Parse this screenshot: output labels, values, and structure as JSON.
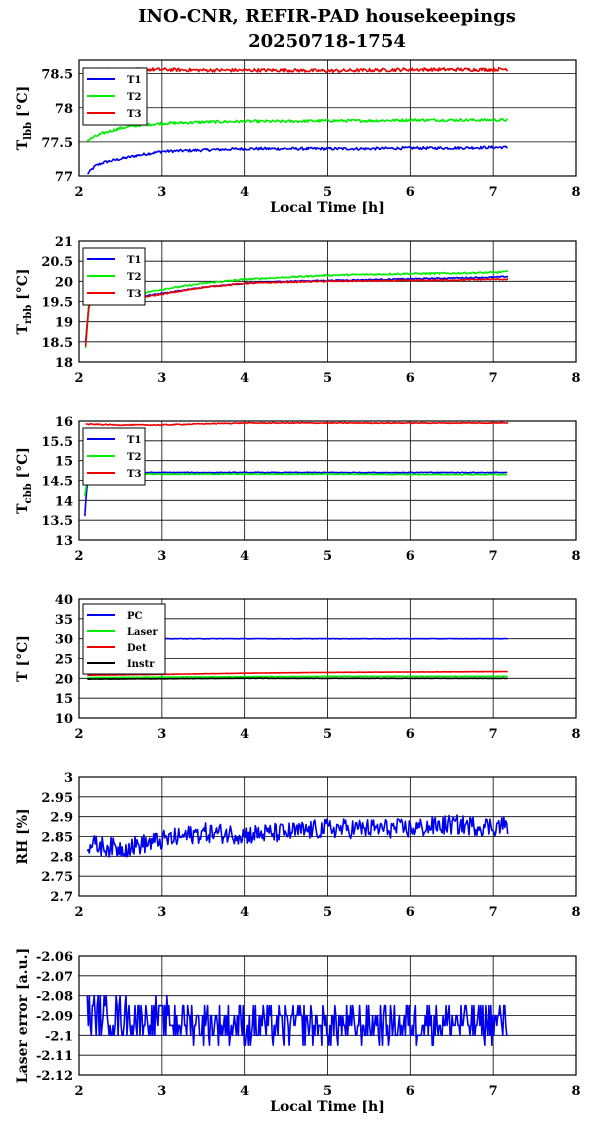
{
  "figure": {
    "title_line1": "INO-CNR, REFIR-PAD housekeepings",
    "title_line2": "20250718-1754"
  },
  "chart_data": [
    {
      "id": "p1",
      "type": "line",
      "ylabel": "T",
      "ylabel_sub": "lbb",
      "ylabel_unit": " [°C]",
      "xlabel": "Local Time [h]",
      "xlim": [
        2,
        8
      ],
      "ylim": [
        77,
        78.7
      ],
      "xticks": [
        2,
        3,
        4,
        5,
        6,
        7,
        8
      ],
      "yticks": [
        77,
        77.5,
        78,
        78.5
      ],
      "ytick_labels": [
        "77",
        "77.5",
        "78",
        "78.5"
      ],
      "grid": true,
      "legend_position": "top-left",
      "series": [
        {
          "name": "T1",
          "color": "#0000ee",
          "x": [
            2.1,
            2.2,
            2.3,
            2.5,
            2.7,
            3,
            3.5,
            4,
            4.5,
            5,
            5.5,
            6,
            6.5,
            7,
            7.18
          ],
          "y": [
            77.03,
            77.15,
            77.2,
            77.25,
            77.3,
            77.36,
            77.38,
            77.4,
            77.4,
            77.4,
            77.4,
            77.41,
            77.41,
            77.42,
            77.42
          ],
          "noise": 0.02
        },
        {
          "name": "T2",
          "color": "#00ee00",
          "x": [
            2.1,
            2.2,
            2.3,
            2.5,
            2.7,
            3,
            3.5,
            4,
            4.5,
            5,
            5.5,
            6,
            6.5,
            7,
            7.18
          ],
          "y": [
            77.52,
            77.58,
            77.63,
            77.7,
            77.74,
            77.77,
            77.79,
            77.8,
            77.8,
            77.81,
            77.81,
            77.82,
            77.82,
            77.82,
            77.82
          ],
          "noise": 0.02
        },
        {
          "name": "T3",
          "color": "#ee0000",
          "x": [
            2.1,
            2.5,
            3,
            3.5,
            4,
            4.5,
            5,
            5.5,
            6,
            6.5,
            7,
            7.18
          ],
          "y": [
            78.56,
            78.56,
            78.56,
            78.55,
            78.55,
            78.55,
            78.54,
            78.55,
            78.56,
            78.56,
            78.56,
            78.57
          ],
          "noise": 0.025
        }
      ]
    },
    {
      "id": "p2",
      "type": "line",
      "ylabel": "T",
      "ylabel_sub": "rbb",
      "ylabel_unit": " [°C]",
      "xlim": [
        2,
        8
      ],
      "ylim": [
        18,
        21
      ],
      "xticks": [
        2,
        3,
        4,
        5,
        6,
        7,
        8
      ],
      "yticks": [
        18,
        18.5,
        19,
        19.5,
        20,
        20.5,
        21
      ],
      "ytick_labels": [
        "18",
        "18.5",
        "19",
        "19.5",
        "20",
        "20.5",
        "21"
      ],
      "grid": true,
      "legend_position": "top-left",
      "series": [
        {
          "name": "T1",
          "color": "#0000ee",
          "x": [
            2.08,
            2.1,
            2.12,
            2.2,
            2.5,
            3,
            3.5,
            4,
            4.5,
            5,
            5.5,
            6,
            6.5,
            7,
            7.18
          ],
          "y": [
            18.5,
            19,
            19.45,
            19.5,
            19.55,
            19.7,
            19.85,
            19.95,
            20.0,
            20.02,
            20.04,
            20.06,
            20.08,
            20.1,
            20.12
          ],
          "noise": 0.015
        },
        {
          "name": "T2",
          "color": "#00ee00",
          "x": [
            2.08,
            2.1,
            2.12,
            2.2,
            2.5,
            3,
            3.5,
            4,
            4.5,
            5,
            5.5,
            6,
            6.5,
            7,
            7.18
          ],
          "y": [
            18.35,
            19,
            19.45,
            19.55,
            19.6,
            19.8,
            19.95,
            20.05,
            20.1,
            20.15,
            20.17,
            20.19,
            20.2,
            20.22,
            20.24
          ],
          "noise": 0.02
        },
        {
          "name": "T3",
          "color": "#ee0000",
          "x": [
            2.08,
            2.1,
            2.12,
            2.2,
            2.5,
            3,
            3.5,
            4,
            4.5,
            5,
            5.5,
            6,
            6.5,
            7,
            7.18
          ],
          "y": [
            18.4,
            18.9,
            19.4,
            19.48,
            19.52,
            19.68,
            19.85,
            19.95,
            19.98,
            20.0,
            20.01,
            20.02,
            20.03,
            20.05,
            20.05
          ],
          "noise": 0.015
        }
      ]
    },
    {
      "id": "p3",
      "type": "line",
      "ylabel": "T",
      "ylabel_sub": "cbb",
      "ylabel_unit": " [°C]",
      "xlim": [
        2,
        8
      ],
      "ylim": [
        13,
        16
      ],
      "xticks": [
        2,
        3,
        4,
        5,
        6,
        7,
        8
      ],
      "yticks": [
        13,
        13.5,
        14,
        14.5,
        15,
        15.5,
        16
      ],
      "ytick_labels": [
        "13",
        "13.5",
        "14",
        "14.5",
        "15",
        "15.5",
        "16"
      ],
      "grid": true,
      "legend_position": "top-left",
      "series": [
        {
          "name": "T1",
          "color": "#0000ee",
          "x": [
            2.07,
            2.09,
            2.11,
            2.15,
            2.5,
            3,
            4,
            5,
            6,
            7,
            7.18
          ],
          "y": [
            13.6,
            14.2,
            14.55,
            14.68,
            14.7,
            14.7,
            14.7,
            14.7,
            14.7,
            14.7,
            14.7
          ],
          "noise": 0.01
        },
        {
          "name": "T2",
          "color": "#00ee00",
          "x": [
            2.07,
            2.09,
            2.11,
            2.15,
            2.5,
            3,
            4,
            5,
            6,
            7,
            7.18
          ],
          "y": [
            14.1,
            14.4,
            14.6,
            14.66,
            14.67,
            14.66,
            14.66,
            14.66,
            14.65,
            14.65,
            14.65
          ],
          "noise": 0.01
        },
        {
          "name": "T3",
          "color": "#ee0000",
          "x": [
            2.08,
            2.5,
            3,
            3.5,
            4,
            5,
            6,
            7,
            7.18
          ],
          "y": [
            15.92,
            15.9,
            15.9,
            15.93,
            15.95,
            15.95,
            15.95,
            15.95,
            15.96
          ],
          "noise": 0.012
        }
      ]
    },
    {
      "id": "p4",
      "type": "line",
      "ylabel": "T [°C]",
      "xlim": [
        2,
        8
      ],
      "ylim": [
        10,
        40
      ],
      "xticks": [
        2,
        3,
        4,
        5,
        6,
        7,
        8
      ],
      "yticks": [
        10,
        15,
        20,
        25,
        30,
        35,
        40
      ],
      "ytick_labels": [
        "10",
        "15",
        "20",
        "25",
        "30",
        "35",
        "40"
      ],
      "grid": true,
      "legend_position": "top-left",
      "series": [
        {
          "name": "PC",
          "color": "#0000ee",
          "x": [
            2.1,
            3,
            4,
            5,
            6,
            7,
            7.18
          ],
          "y": [
            30,
            30,
            30,
            30,
            30,
            30,
            30
          ],
          "noise": 0.05
        },
        {
          "name": "Laser",
          "color": "#00ee00",
          "x": [
            2.1,
            3,
            4,
            5,
            6,
            7,
            7.18
          ],
          "y": [
            20.2,
            20.3,
            20.4,
            20.5,
            20.5,
            20.5,
            20.5
          ],
          "noise": 0.05
        },
        {
          "name": "Det",
          "color": "#ee0000",
          "x": [
            2.1,
            3,
            4,
            5,
            6,
            7,
            7.18
          ],
          "y": [
            20.8,
            21,
            21.3,
            21.5,
            21.6,
            21.7,
            21.7
          ],
          "noise": 0.03
        },
        {
          "name": "Instr",
          "color": "#000000",
          "x": [
            2.1,
            3,
            4,
            5,
            6,
            7,
            7.18
          ],
          "y": [
            19.8,
            19.9,
            20.0,
            20.0,
            20.0,
            20.0,
            20.0
          ],
          "noise": 0.04
        }
      ]
    },
    {
      "id": "p5",
      "type": "line",
      "ylabel": "RH [%]",
      "xlim": [
        2,
        8
      ],
      "ylim": [
        2.7,
        3.0
      ],
      "xticks": [
        2,
        3,
        4,
        5,
        6,
        7,
        8
      ],
      "yticks": [
        2.7,
        2.75,
        2.8,
        2.85,
        2.9,
        2.95,
        3.0
      ],
      "ytick_labels": [
        "2.7",
        "2.75",
        "2.8",
        "2.85",
        "2.9",
        "2.95",
        "3"
      ],
      "grid": true,
      "legend_position": "none",
      "series": [
        {
          "name": "",
          "color": "#0000ee",
          "x": [
            2.1,
            2.5,
            3,
            3.5,
            4,
            4.5,
            5,
            5.5,
            6,
            6.5,
            7,
            7.18
          ],
          "y": [
            2.83,
            2.82,
            2.84,
            2.86,
            2.855,
            2.86,
            2.87,
            2.87,
            2.87,
            2.88,
            2.875,
            2.88
          ],
          "noise": 0.025
        }
      ]
    },
    {
      "id": "p6",
      "type": "line",
      "ylabel": "Laser error [a.u.]",
      "xlabel": "Local Time [h]",
      "xlim": [
        2,
        8
      ],
      "ylim": [
        -2.12,
        -2.06
      ],
      "xticks": [
        2,
        3,
        4,
        5,
        6,
        7,
        8
      ],
      "yticks": [
        -2.12,
        -2.11,
        -2.1,
        -2.09,
        -2.08,
        -2.07,
        -2.06
      ],
      "ytick_labels": [
        "-2.12",
        "-2.11",
        "-2.1",
        "-2.09",
        "-2.08",
        "-2.07",
        "-2.06"
      ],
      "grid": true,
      "legend_position": "none",
      "series": [
        {
          "name": "",
          "color": "#0000ee",
          "x": [
            2.1,
            3,
            4,
            5,
            6,
            7,
            7.18
          ],
          "y": [
            -2.09,
            -2.092,
            -2.095,
            -2.095,
            -2.094,
            -2.093,
            -2.093
          ],
          "noise": 0.01,
          "quantize": 0.005
        }
      ]
    }
  ]
}
